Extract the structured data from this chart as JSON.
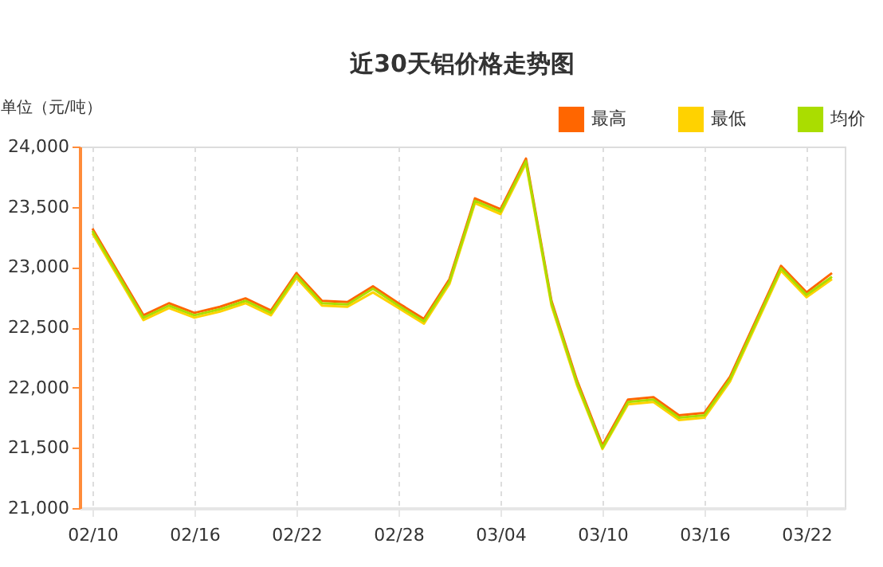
{
  "chart_data": {
    "type": "line",
    "title": "近30天铝价格走势图",
    "ylabel": "单位（元/吨）",
    "categories": [
      "02/10",
      null,
      null,
      null,
      "02/16",
      null,
      null,
      null,
      "02/22",
      null,
      null,
      null,
      "02/28",
      null,
      null,
      null,
      "03/04",
      null,
      null,
      null,
      "03/10",
      null,
      null,
      null,
      "03/16",
      null,
      null,
      null,
      "03/22",
      null
    ],
    "series": [
      {
        "name": "最高",
        "color": "#ff6600",
        "values": [
          23320,
          22960,
          22600,
          22700,
          22620,
          22670,
          22740,
          22640,
          22950,
          22720,
          22710,
          22840,
          22700,
          22570,
          22900,
          23570,
          23480,
          23900,
          22720,
          22060,
          21520,
          21900,
          21920,
          21770,
          21790,
          22090,
          22550,
          23010,
          22790,
          22950
        ]
      },
      {
        "name": "最低",
        "color": "#ffd200",
        "values": [
          23280,
          22920,
          22560,
          22660,
          22580,
          22630,
          22700,
          22600,
          22910,
          22680,
          22670,
          22790,
          22660,
          22530,
          22860,
          23530,
          23440,
          23860,
          22680,
          22020,
          21490,
          21860,
          21880,
          21730,
          21750,
          22050,
          22510,
          22970,
          22750,
          22900
        ]
      },
      {
        "name": "均价",
        "color": "#aadd00",
        "values": [
          23300,
          22940,
          22580,
          22680,
          22600,
          22650,
          22720,
          22620,
          22930,
          22700,
          22690,
          22820,
          22680,
          22550,
          22880,
          23550,
          23460,
          23880,
          22700,
          22040,
          21500,
          21880,
          21900,
          21750,
          21770,
          22070,
          22530,
          22990,
          22770,
          22920
        ]
      }
    ],
    "ylim": [
      21000,
      24000
    ],
    "yticks": [
      {
        "value": 21000,
        "label": "21,000"
      },
      {
        "value": 21500,
        "label": "21,500"
      },
      {
        "value": 22000,
        "label": "22,000"
      },
      {
        "value": 22500,
        "label": "22,500"
      },
      {
        "value": 23000,
        "label": "23,000"
      },
      {
        "value": 23500,
        "label": "23,500"
      },
      {
        "value": 24000,
        "label": "24,000"
      }
    ],
    "grid": "x",
    "legend": "top right",
    "marker": "none",
    "line_style": "solid"
  }
}
